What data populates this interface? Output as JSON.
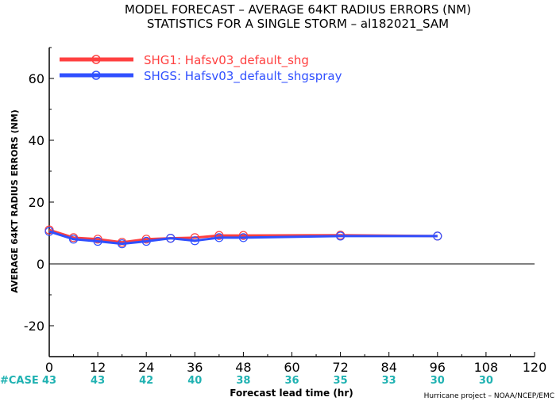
{
  "chart_data": {
    "type": "line",
    "title": "MODEL FORECAST – AVERAGE 64KT RADIUS ERRORS (NM)",
    "subtitle": "STATISTICS FOR A SINGLE STORM – al182021_SAM",
    "xlabel": "Forecast lead time (hr)",
    "ylabel": "AVERAGE 64KT RADIUS ERRORS (NM)",
    "xlim": [
      0,
      120
    ],
    "ylim": [
      -30,
      70
    ],
    "xticks": [
      0,
      12,
      24,
      36,
      48,
      60,
      72,
      84,
      96,
      108,
      120
    ],
    "yticks": [
      -20,
      0,
      20,
      40,
      60
    ],
    "grid": false,
    "legend_position": "top-left",
    "series": [
      {
        "name": "SHG1: Hafsv03_default_shg",
        "color": "#ff4040",
        "x": [
          0,
          6,
          12,
          18,
          24,
          30,
          36,
          42,
          48,
          72,
          96
        ],
        "y": [
          11,
          8.5,
          8,
          7,
          8,
          8.3,
          8.5,
          9.2,
          9.2,
          9.3,
          9.0
        ]
      },
      {
        "name": "SHGS: Hafsv03_default_shgspray",
        "color": "#3050ff",
        "x": [
          0,
          6,
          12,
          18,
          24,
          30,
          36,
          42,
          48,
          72,
          96
        ],
        "y": [
          10.5,
          8.0,
          7.3,
          6.5,
          7.3,
          8.3,
          7.5,
          8.5,
          8.5,
          9.0,
          9.0
        ]
      }
    ],
    "cases": {
      "label": "#CASE",
      "x": [
        0,
        12,
        24,
        36,
        48,
        60,
        72,
        84,
        96,
        108
      ],
      "values": [
        "43",
        "43",
        "42",
        "40",
        "38",
        "36",
        "35",
        "33",
        "30",
        "30"
      ]
    },
    "credit": "Hurricane project – NOAA/NCEP/EMC"
  },
  "colors": {
    "case_text": "#20b2b2",
    "axis": "#000000",
    "zero_line": "#000000"
  }
}
